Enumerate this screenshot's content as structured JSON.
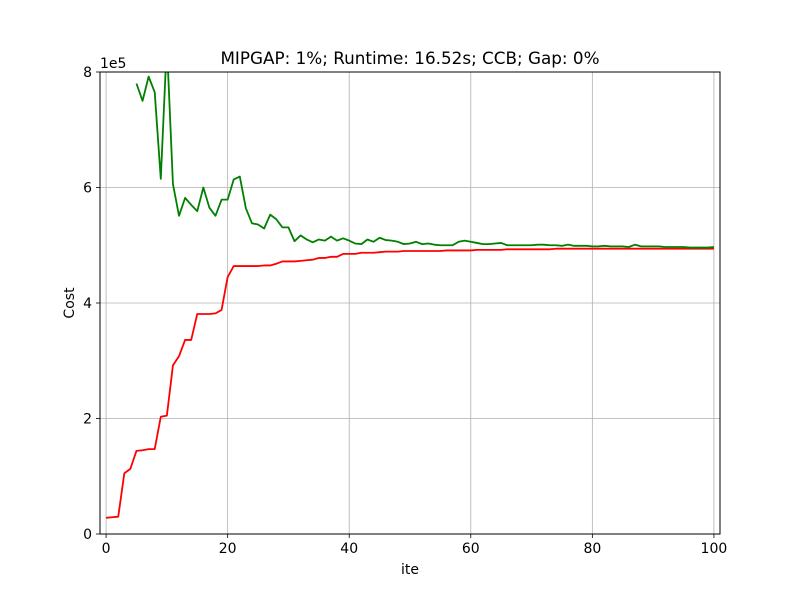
{
  "chart_data": {
    "type": "line",
    "title": "MIPGAP: 1%; Runtime: 16.52s; CCB; Gap: 0%",
    "xlabel": "ite",
    "ylabel": "Cost",
    "y_offset_label": "1e5",
    "xlim": [
      -1,
      101
    ],
    "ylim": [
      0,
      800000
    ],
    "xticks": [
      0,
      20,
      40,
      60,
      80,
      100
    ],
    "xtick_labels": [
      "0",
      "20",
      "40",
      "60",
      "80",
      "100"
    ],
    "yticks": [
      0,
      200000,
      400000,
      600000,
      800000
    ],
    "ytick_labels": [
      "0",
      "2",
      "4",
      "6",
      "8"
    ],
    "grid": true,
    "x": [
      0,
      1,
      2,
      3,
      4,
      5,
      6,
      7,
      8,
      9,
      10,
      11,
      12,
      13,
      14,
      15,
      16,
      17,
      18,
      19,
      20,
      21,
      22,
      23,
      24,
      25,
      26,
      27,
      28,
      29,
      30,
      31,
      32,
      33,
      34,
      35,
      36,
      37,
      38,
      39,
      40,
      41,
      42,
      43,
      44,
      45,
      46,
      47,
      48,
      49,
      50,
      51,
      52,
      53,
      54,
      55,
      56,
      57,
      58,
      59,
      60,
      61,
      62,
      63,
      64,
      65,
      66,
      67,
      68,
      69,
      70,
      71,
      72,
      73,
      74,
      75,
      76,
      77,
      78,
      79,
      80,
      81,
      82,
      83,
      84,
      85,
      86,
      87,
      88,
      89,
      90,
      91,
      92,
      93,
      94,
      95,
      96,
      97,
      98,
      99,
      100
    ],
    "series": [
      {
        "color": "#ff0000",
        "values": [
          28000,
          29000,
          30000,
          105000,
          113000,
          144000,
          145000,
          147000,
          147000,
          203000,
          205000,
          292000,
          308000,
          336000,
          336000,
          381000,
          381000,
          381000,
          382000,
          388000,
          445000,
          464000,
          464000,
          464000,
          464000,
          464000,
          465000,
          465000,
          468000,
          472000,
          472000,
          472000,
          473000,
          474000,
          475000,
          478000,
          478000,
          480000,
          480000,
          485000,
          485000,
          485000,
          487000,
          487000,
          487000,
          488000,
          489000,
          489000,
          489000,
          490000,
          490000,
          490000,
          490000,
          490000,
          490000,
          490000,
          491000,
          491000,
          491000,
          491000,
          491000,
          492000,
          492000,
          492000,
          492000,
          492000,
          493000,
          493000,
          493000,
          493000,
          493000,
          493000,
          493000,
          493000,
          494000,
          494000,
          494000,
          494000,
          494000,
          494000,
          494000,
          494000,
          494000,
          494000,
          494000,
          494000,
          494000,
          494000,
          494000,
          494000,
          494000,
          494000,
          494000,
          494000,
          494000,
          494000,
          494000,
          494000,
          494000,
          494000,
          494000
        ]
      },
      {
        "color": "#008000",
        "values": [
          null,
          null,
          null,
          null,
          null,
          780000,
          750000,
          792000,
          765000,
          615000,
          850000,
          606000,
          551000,
          582000,
          570000,
          559000,
          600000,
          565000,
          551000,
          579000,
          579000,
          614000,
          619000,
          564000,
          538000,
          536000,
          529000,
          553000,
          545000,
          531000,
          531000,
          507000,
          517000,
          510000,
          505000,
          510000,
          508000,
          515000,
          508000,
          512000,
          508000,
          503000,
          502000,
          510000,
          506000,
          513000,
          509000,
          508000,
          506000,
          502000,
          503000,
          506000,
          502000,
          503000,
          501000,
          500000,
          500000,
          500000,
          506000,
          508000,
          506000,
          504000,
          502000,
          502000,
          503000,
          504000,
          500000,
          500000,
          500000,
          500000,
          500000,
          501000,
          501000,
          500000,
          500000,
          499000,
          501000,
          499000,
          499000,
          499000,
          498000,
          498000,
          499000,
          498000,
          498000,
          498000,
          497000,
          501000,
          498000,
          498000,
          498000,
          498000,
          497000,
          497000,
          497000,
          497000,
          496000,
          496000,
          496000,
          496000,
          497000
        ]
      }
    ]
  }
}
